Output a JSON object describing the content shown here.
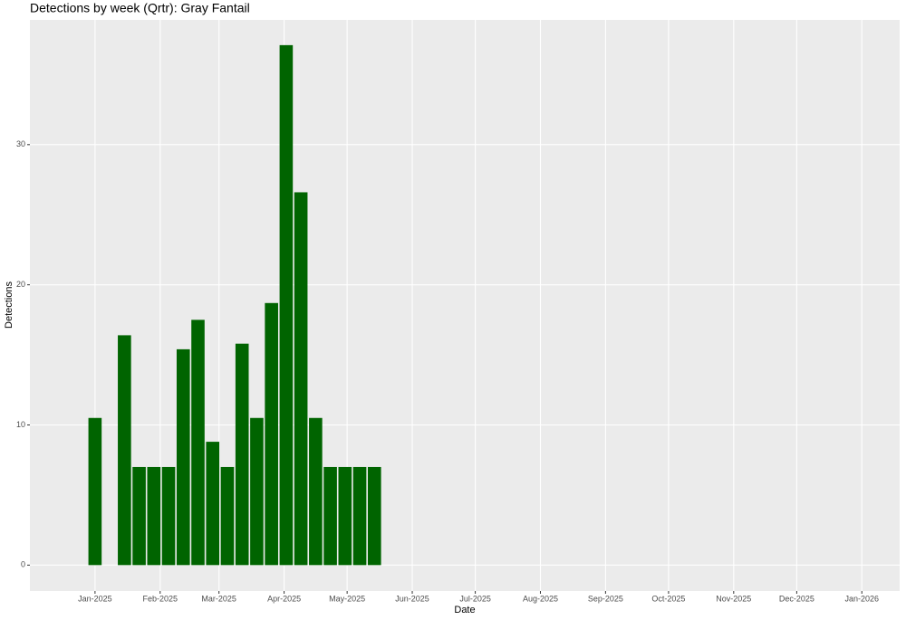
{
  "chart_data": {
    "type": "bar",
    "title": "Detections by week (Qrtr): Gray Fantail",
    "x_label": "Date",
    "y_label": "Detections",
    "x": [
      "2025-01-01",
      "2025-01-15",
      "2025-01-22",
      "2025-01-29",
      "2025-02-05",
      "2025-02-12",
      "2025-02-19",
      "2025-02-26",
      "2025-03-05",
      "2025-03-12",
      "2025-03-19",
      "2025-03-26",
      "2025-04-02",
      "2025-04-09",
      "2025-04-16",
      "2025-04-23",
      "2025-04-30",
      "2025-05-07",
      "2025-05-14"
    ],
    "values": [
      10.5,
      16.4,
      7,
      7,
      7,
      15.4,
      17.5,
      8.8,
      7,
      15.8,
      10.5,
      18.7,
      37.1,
      26.6,
      10.5,
      7,
      7,
      7,
      7
    ],
    "color": "#006400",
    "xlim": [
      "2024-12-01",
      "2026-01-19"
    ],
    "xticks": [
      {
        "value": "2025-01-01",
        "label": "Jan-2025"
      },
      {
        "value": "2025-02-01",
        "label": "Feb-2025"
      },
      {
        "value": "2025-03-01",
        "label": "Mar-2025"
      },
      {
        "value": "2025-04-01",
        "label": "Apr-2025"
      },
      {
        "value": "2025-05-01",
        "label": "May-2025"
      },
      {
        "value": "2025-06-01",
        "label": "Jun-2025"
      },
      {
        "value": "2025-07-01",
        "label": "Jul-2025"
      },
      {
        "value": "2025-08-01",
        "label": "Aug-2025"
      },
      {
        "value": "2025-09-01",
        "label": "Sep-2025"
      },
      {
        "value": "2025-10-01",
        "label": "Oct-2025"
      },
      {
        "value": "2025-11-01",
        "label": "Nov-2025"
      },
      {
        "value": "2025-12-01",
        "label": "Dec-2025"
      },
      {
        "value": "2026-01-01",
        "label": "Jan-2026"
      }
    ],
    "ylim": [
      -1.85,
      38.9
    ],
    "yticks": [
      0,
      10,
      20,
      30
    ],
    "grid": true
  }
}
